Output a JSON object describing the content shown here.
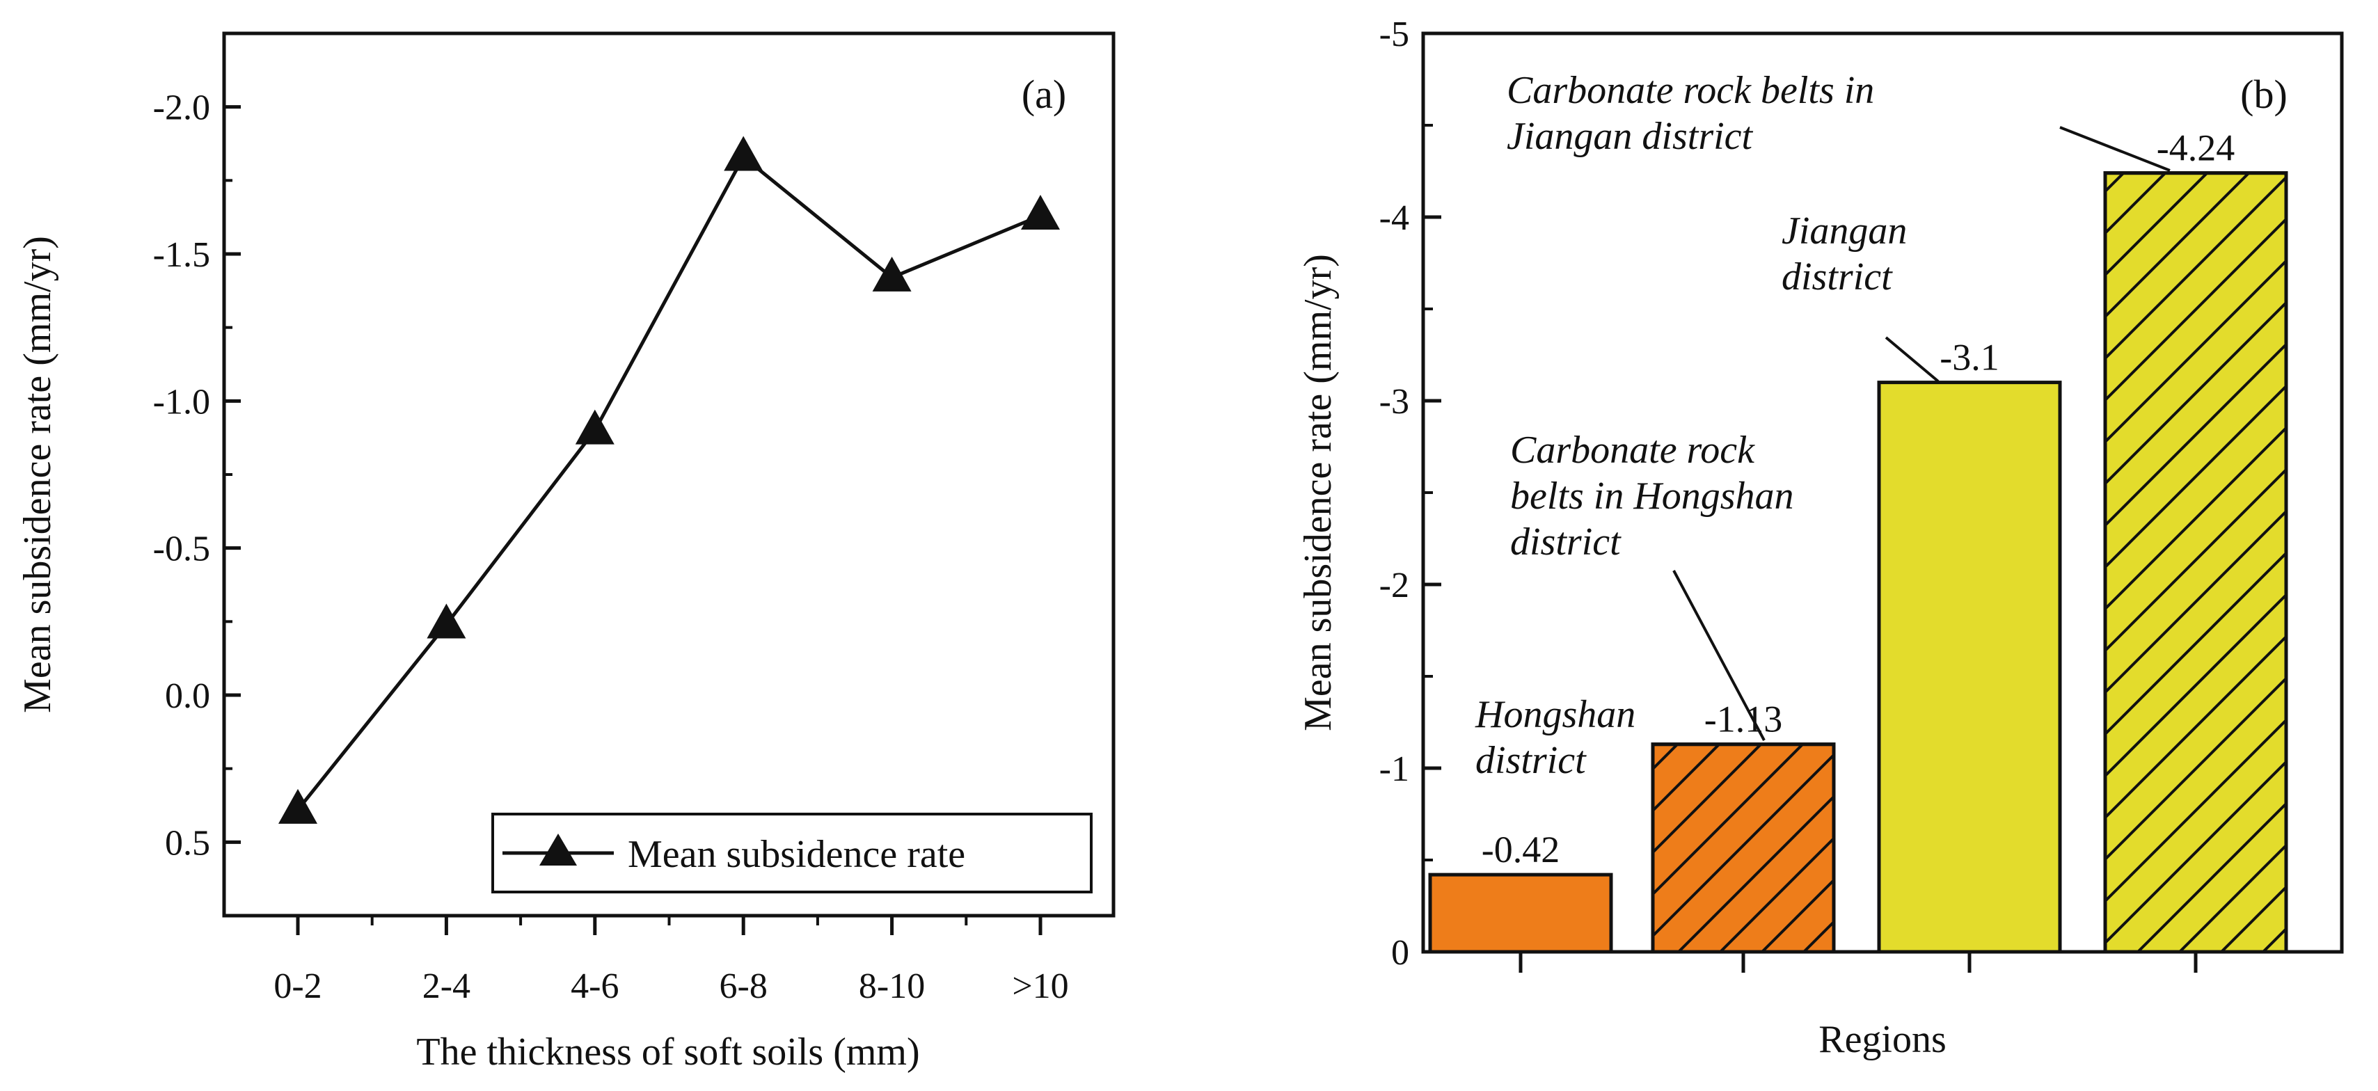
{
  "chart_data": [
    {
      "panel": "(a)",
      "type": "line",
      "categories": [
        "0-2",
        "2-4",
        "4-6",
        "6-8",
        "8-10",
        ">10"
      ],
      "series": [
        {
          "name": "Mean subsidence rate",
          "values": [
            0.39,
            -0.24,
            -0.9,
            -1.83,
            -1.42,
            -1.63
          ]
        }
      ],
      "xlabel": "The thickness of soft soils (mm)",
      "ylabel": "Mean subsidence rate (mm/yr)",
      "ylim": [
        0.75,
        -2.25
      ],
      "y_ticks": [
        "-2.0",
        "-1.5",
        "-1.0",
        "-0.5",
        "0.0",
        "0.5"
      ],
      "legend": {
        "label": "Mean subsidence rate",
        "position": "bottom-right"
      },
      "marker": "triangle",
      "grid": false
    },
    {
      "panel": "(b)",
      "type": "bar",
      "categories": [
        "Hongshan district",
        "Carbonate rock belts in Hongshan district",
        "Jiangan district",
        "Carbonate rock belts in Jiangan district"
      ],
      "values": [
        -0.42,
        -1.13,
        -3.1,
        -4.24
      ],
      "value_labels": [
        "-0.42",
        "-1.13",
        "-3.1",
        "-4.24"
      ],
      "colors": [
        "#ee7d1a",
        "#ee7d1a",
        "#e3dc2c",
        "#e3dc2c"
      ],
      "hatched": [
        false,
        true,
        false,
        true
      ],
      "xlabel": "Regions",
      "ylabel": "Mean subsidence rate (mm/yr)",
      "ylim": [
        0,
        -5
      ],
      "y_ticks": [
        "-5",
        "-4",
        "-3",
        "-2",
        "-1",
        "0"
      ],
      "annotations": [
        {
          "lines": [
            "Hongshan",
            "district"
          ]
        },
        {
          "lines": [
            "Carbonate rock",
            "belts in Hongshan",
            "district"
          ]
        },
        {
          "lines": [
            "Jiangan",
            "district"
          ]
        },
        {
          "lines": [
            "Carbonate rock belts in",
            "Jiangan district"
          ]
        }
      ],
      "grid": false
    }
  ]
}
